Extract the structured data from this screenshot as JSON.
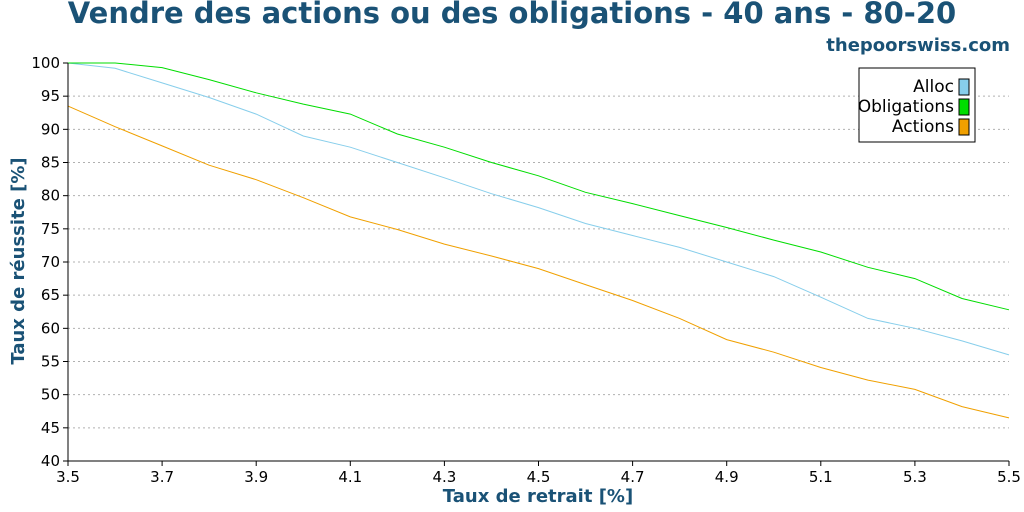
{
  "header": {
    "title": "Vendre des actions ou des obligations - 40 ans - 80-20",
    "source": "thepoorswiss.com"
  },
  "colors": {
    "title": "#1a5276",
    "grid": "#b0b0b0",
    "axis": "#000000"
  },
  "chart_data": {
    "type": "line",
    "title": "Vendre des actions ou des obligations - 40 ans - 80-20",
    "xlabel": "Taux de retrait [%]",
    "ylabel": "Taux de réussite [%]",
    "xlim": [
      3.5,
      5.5
    ],
    "ylim": [
      40,
      100
    ],
    "xticks": [
      "3.5",
      "3.7",
      "3.9",
      "4.1",
      "4.3",
      "4.5",
      "4.7",
      "4.9",
      "5.1",
      "5.3",
      "5.5"
    ],
    "yticks": [
      "40",
      "45",
      "50",
      "55",
      "60",
      "65",
      "70",
      "75",
      "80",
      "85",
      "90",
      "95",
      "100"
    ],
    "grid": "horizontal dotted",
    "legend_position": "top-right",
    "x": [
      3.5,
      3.6,
      3.7,
      3.8,
      3.9,
      4.0,
      4.1,
      4.2,
      4.3,
      4.4,
      4.5,
      4.6,
      4.7,
      4.8,
      4.9,
      5.0,
      5.1,
      5.2,
      5.3,
      5.4,
      5.5
    ],
    "series": [
      {
        "name": "Alloc",
        "color": "#87ceeb",
        "values": [
          100,
          99.2,
          97,
          94.8,
          92.3,
          89,
          87.3,
          85,
          82.7,
          80.3,
          78.2,
          75.8,
          74,
          72.2,
          70,
          67.8,
          64.7,
          61.5,
          60,
          58.1,
          56
        ]
      },
      {
        "name": "Obligations",
        "color": "#00dd00",
        "values": [
          100,
          100,
          99.3,
          97.5,
          95.5,
          93.8,
          92.3,
          89.3,
          87.3,
          85,
          83,
          80.5,
          78.8,
          77,
          75.2,
          73.3,
          71.5,
          69.2,
          67.5,
          64.5,
          62.8
        ]
      },
      {
        "name": "Actions",
        "color": "#f0a000",
        "values": [
          93.5,
          90.4,
          87.5,
          84.6,
          82.4,
          79.7,
          76.8,
          74.9,
          72.7,
          70.9,
          69,
          66.6,
          64.2,
          61.5,
          58.3,
          56.4,
          54.1,
          52.2,
          50.8,
          48.2,
          46.5
        ]
      }
    ]
  }
}
